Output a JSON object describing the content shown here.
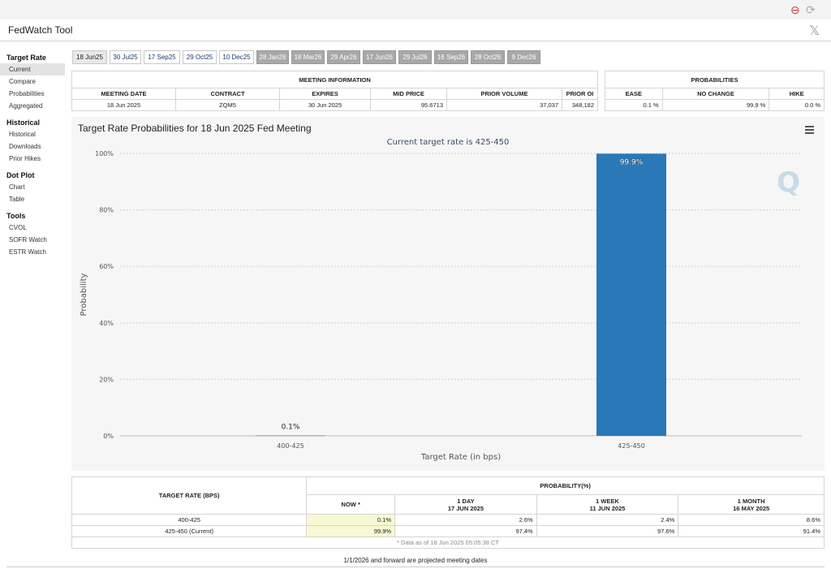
{
  "app": {
    "title": "FedWatch Tool"
  },
  "sidebar": [
    {
      "heading": "Target Rate",
      "items": [
        {
          "label": "Current",
          "selected": true
        },
        {
          "label": "Compare"
        },
        {
          "label": "Probabilities"
        },
        {
          "label": "Aggregated"
        }
      ]
    },
    {
      "heading": "Historical",
      "items": [
        {
          "label": "Historical"
        },
        {
          "label": "Downloads"
        },
        {
          "label": "Prior Hikes"
        }
      ]
    },
    {
      "heading": "Dot Plot",
      "items": [
        {
          "label": "Chart"
        },
        {
          "label": "Table"
        }
      ]
    },
    {
      "heading": "Tools",
      "items": [
        {
          "label": "CVOL"
        },
        {
          "label": "SOFR Watch"
        },
        {
          "label": "ESTR Watch"
        }
      ]
    }
  ],
  "tabs": [
    {
      "label": "18 Jun25",
      "state": "selected"
    },
    {
      "label": "30 Jul25",
      "state": "normal"
    },
    {
      "label": "17 Sep25",
      "state": "normal"
    },
    {
      "label": "29 Oct25",
      "state": "normal"
    },
    {
      "label": "10 Dec25",
      "state": "normal"
    },
    {
      "label": "28 Jan26",
      "state": "disabled"
    },
    {
      "label": "18 Mar26",
      "state": "disabled"
    },
    {
      "label": "29 Apr26",
      "state": "disabled"
    },
    {
      "label": "17 Jun26",
      "state": "disabled"
    },
    {
      "label": "29 Jul26",
      "state": "disabled"
    },
    {
      "label": "16 Sep26",
      "state": "disabled"
    },
    {
      "label": "28 Oct26",
      "state": "disabled"
    },
    {
      "label": "9 Dec26",
      "state": "disabled"
    }
  ],
  "meeting_info": {
    "heading": "MEETING INFORMATION",
    "columns": [
      "MEETING DATE",
      "CONTRACT",
      "EXPIRES",
      "MID PRICE",
      "PRIOR VOLUME",
      "PRIOR OI"
    ],
    "row": [
      "18 Jun 2025",
      "ZQM5",
      "30 Jun 2025",
      "95.6713",
      "37,037",
      "348,182"
    ]
  },
  "probabilities": {
    "heading": "PROBABILITIES",
    "columns": [
      "EASE",
      "NO CHANGE",
      "HIKE"
    ],
    "row": [
      "0.1 %",
      "99.9 %",
      "0.0 %"
    ]
  },
  "chart_data": {
    "type": "bar",
    "title": "Target Rate Probabilities for 18 Jun 2025 Fed Meeting",
    "subtitle": "Current target rate is 425-450",
    "xlabel": "Target Rate (in bps)",
    "ylabel": "Probability",
    "categories": [
      "400-425",
      "425-450"
    ],
    "values": [
      0.1,
      99.9
    ],
    "data_labels": [
      "0.1%",
      "99.9%"
    ],
    "ylim": [
      0,
      100
    ],
    "yticks": [
      "0%",
      "20%",
      "40%",
      "60%",
      "80%",
      "100%"
    ],
    "grid": true,
    "bar_color": "#2a78b8"
  },
  "brand": {
    "logo_letter": "Q"
  },
  "bottom_table": {
    "header_left": "TARGET RATE (BPS)",
    "header_group": "PROBABILITY(%)",
    "columns": [
      {
        "line1": "NOW *",
        "line2": ""
      },
      {
        "line1": "1 DAY",
        "line2": "17 JUN 2025"
      },
      {
        "line1": "1 WEEK",
        "line2": "11 JUN 2025"
      },
      {
        "line1": "1 MONTH",
        "line2": "16 MAY 2025"
      }
    ],
    "rows": [
      {
        "label": "400-425",
        "values": [
          "0.1%",
          "2.6%",
          "2.4%",
          "8.6%"
        ]
      },
      {
        "label": "425-450 (Current)",
        "values": [
          "99.9%",
          "97.4%",
          "97.6%",
          "91.4%"
        ]
      }
    ],
    "note": "* Data as of 18 Jun 2025 05:05:38 CT"
  },
  "footnote": "1/1/2026 and forward are projected meeting dates",
  "colors": {
    "now_highlight": "#f8f8d4"
  }
}
